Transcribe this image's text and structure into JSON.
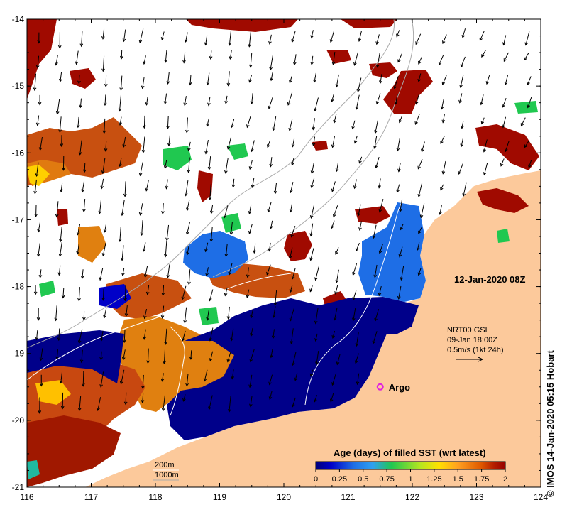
{
  "map": {
    "type": "ocean-sst-map",
    "lon_ticks": [
      "116",
      "117",
      "118",
      "119",
      "120",
      "121",
      "122",
      "123",
      "124"
    ],
    "lat_ticks": [
      "-14",
      "-15",
      "-16",
      "-17",
      "-18",
      "-19",
      "-20",
      "-21"
    ],
    "lon_range": [
      116,
      124
    ],
    "lat_range": [
      -21,
      -14
    ],
    "timestamp": "12-Jan-2020 08Z",
    "vector_legend": {
      "line1": "NRT00 GSL",
      "line2": "09-Jan 18:00Z",
      "line3": "0.5m/s (1kt 24h)"
    },
    "marker": {
      "label": "Argo",
      "lon": 121.5,
      "lat": -19.5
    },
    "depth_legend": {
      "contour1": "200m",
      "contour2": "1000m"
    },
    "colorbar": {
      "title": "Age (days) of filled SST (wrt latest)",
      "ticks": [
        "0",
        "0.25",
        "0.5",
        "0.75",
        "1",
        "1.25",
        "1.5",
        "1.75",
        "2"
      ],
      "range": [
        0,
        2
      ],
      "colors": [
        "#00007a",
        "#0000c8",
        "#1e6ee6",
        "#2fa0f0",
        "#20c850",
        "#b4e620",
        "#ffe000",
        "#ffa020",
        "#e05a00",
        "#b41e00",
        "#960000"
      ]
    },
    "credit": "© IMOS 14-Jan-2020 05:15 Hobart",
    "colors": {
      "land": "#fcc99b",
      "no_data": "#ffffff",
      "frame": "#000000",
      "contour": "#aaaaaa"
    }
  }
}
